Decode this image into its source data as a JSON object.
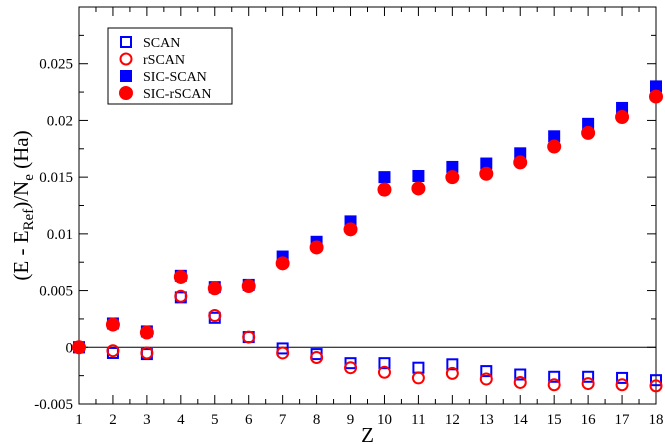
{
  "chart_data": {
    "type": "scatter",
    "xlabel": "Z",
    "ylabel_parts": {
      "pre": "(E - E",
      "sub1": "Ref",
      "mid": ")/N",
      "sub2": "e",
      "post": " (Ha)"
    },
    "xlim": [
      1,
      18
    ],
    "ylim": [
      -0.005,
      0.03
    ],
    "xticks": [
      "1",
      "2",
      "3",
      "4",
      "5",
      "6",
      "7",
      "8",
      "9",
      "10",
      "11",
      "12",
      "13",
      "14",
      "15",
      "16",
      "17",
      "18"
    ],
    "yticks": [
      {
        "value": -0.005,
        "label": "-0.005"
      },
      {
        "value": 0,
        "label": "0"
      },
      {
        "value": 0.005,
        "label": "0.005"
      },
      {
        "value": 0.01,
        "label": "0.01"
      },
      {
        "value": 0.015,
        "label": "0.015"
      },
      {
        "value": 0.02,
        "label": "0.02"
      },
      {
        "value": 0.025,
        "label": "0.025"
      }
    ],
    "zero_line": true,
    "grid": false,
    "legend_position": "top-left",
    "x": [
      1,
      2,
      3,
      4,
      5,
      6,
      7,
      8,
      9,
      10,
      11,
      12,
      13,
      14,
      15,
      16,
      17,
      18
    ],
    "series": [
      {
        "name": "SCAN",
        "marker": "square-open",
        "color": "#0000ff",
        "values": [
          0.0,
          -0.0005,
          -0.0006,
          0.0044,
          0.0026,
          0.0009,
          -0.0001,
          -0.0006,
          -0.0014,
          -0.0014,
          -0.0018,
          -0.0015,
          -0.0021,
          -0.0024,
          -0.0026,
          -0.0026,
          -0.0027,
          -0.0029
        ]
      },
      {
        "name": "rSCAN",
        "marker": "circle-open",
        "color": "#ff0000",
        "values": [
          0.0,
          -0.0003,
          -0.0005,
          0.0045,
          0.0028,
          0.0009,
          -0.0005,
          -0.0009,
          -0.0018,
          -0.0022,
          -0.0027,
          -0.0023,
          -0.0028,
          -0.0031,
          -0.0033,
          -0.0032,
          -0.0033,
          -0.0034
        ]
      },
      {
        "name": "SIC-SCAN",
        "marker": "square-filled",
        "color": "#0000ff",
        "values": [
          0.0,
          0.0021,
          0.0014,
          0.0063,
          0.0053,
          0.0055,
          0.008,
          0.0093,
          0.0111,
          0.015,
          0.0151,
          0.0159,
          0.0162,
          0.0171,
          0.0186,
          0.0197,
          0.0211,
          0.023
        ]
      },
      {
        "name": "SIC-rSCAN",
        "marker": "circle-filled",
        "color": "#ff0000",
        "values": [
          0.0,
          0.002,
          0.0013,
          0.0062,
          0.0052,
          0.0054,
          0.0074,
          0.0088,
          0.0104,
          0.0139,
          0.014,
          0.015,
          0.0153,
          0.0163,
          0.0177,
          0.0189,
          0.0203,
          0.0221
        ]
      }
    ]
  }
}
